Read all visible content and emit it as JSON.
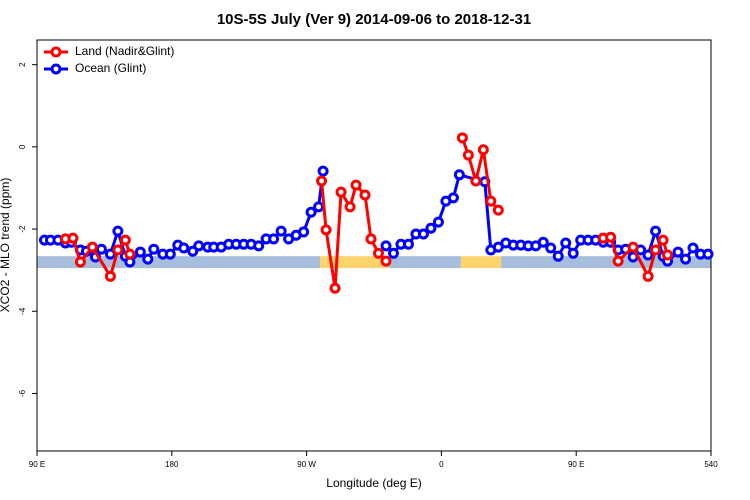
{
  "chart_data": {
    "type": "line",
    "title": "10S-5S July (Ver 9)   2014-09-06 to 2018-12-31",
    "xlabel": "Longitude (deg E)",
    "ylabel": "XCO2 - MLO trend (ppm)",
    "xlim": [
      90,
      540
    ],
    "ylim": [
      -7.4,
      2.6
    ],
    "xticks": [
      {
        "value": 90,
        "label": "90 E"
      },
      180,
      {
        "value": 270,
        "label": "90 W"
      },
      {
        "value": 360,
        "label": "0"
      },
      {
        "value": 450,
        "label": "90 E"
      },
      540
    ],
    "yticks": [
      2,
      0,
      -2,
      -4,
      -6
    ],
    "legend": "top-left",
    "surface_band": {
      "ylim": [
        -2.95,
        -2.66
      ],
      "segments": [
        {
          "from": 90,
          "to": 279,
          "color": "#a6bddb"
        },
        {
          "from": 279,
          "to": 325,
          "color": "#fbd46e"
        },
        {
          "from": 325,
          "to": 373,
          "color": "#a6bddb"
        },
        {
          "from": 373,
          "to": 400,
          "color": "#fbd46e"
        },
        {
          "from": 400,
          "to": 540,
          "color": "#a6bddb"
        }
      ]
    },
    "series": [
      {
        "name": "Ocean (Glint)",
        "color": "#0000ff",
        "x": [
          95,
          99,
          104,
          109,
          113,
          119,
          123,
          129,
          133,
          139,
          144,
          149,
          152,
          159,
          164,
          168,
          174,
          179,
          184,
          188,
          194,
          198,
          204,
          208,
          213,
          218,
          223,
          228,
          233,
          238,
          243,
          248,
          253,
          258,
          263,
          268,
          273,
          278,
          281,
          300,
          323,
          328,
          333,
          338,
          343,
          348,
          353,
          358,
          363,
          368,
          372,
          389,
          393,
          398,
          403,
          408,
          413,
          418,
          423,
          428,
          433,
          438,
          443,
          448,
          453,
          458,
          463,
          468,
          473,
          478,
          483,
          488,
          493,
          498,
          503,
          508,
          511,
          518,
          523,
          528,
          533,
          538
        ],
        "values": [
          -2.27,
          -2.27,
          -2.27,
          -2.34,
          -2.32,
          -2.51,
          -2.54,
          -2.68,
          -2.49,
          -2.61,
          -2.05,
          -2.66,
          -2.8,
          -2.56,
          -2.73,
          -2.49,
          -2.61,
          -2.61,
          -2.39,
          -2.46,
          -2.54,
          -2.41,
          -2.44,
          -2.44,
          -2.44,
          -2.37,
          -2.37,
          -2.37,
          -2.37,
          -2.41,
          -2.24,
          -2.24,
          -2.05,
          -2.24,
          -2.15,
          -2.07,
          -1.59,
          -1.46,
          -0.59,
          null,
          -2.41,
          -2.59,
          -2.37,
          -2.37,
          -2.12,
          -2.12,
          -1.98,
          -1.83,
          -1.32,
          -1.24,
          -0.68,
          -0.85,
          -2.51,
          -2.44,
          -2.34,
          -2.39,
          -2.39,
          -2.41,
          -2.41,
          -2.32,
          -2.46,
          -2.66,
          -2.34,
          -2.59,
          -2.27,
          -2.27,
          -2.27,
          -2.32,
          -2.32,
          -2.51,
          -2.49,
          -2.68,
          -2.51,
          -2.63,
          -2.05,
          -2.66,
          -2.78,
          -2.56,
          -2.73,
          -2.46,
          -2.61,
          -2.61
        ]
      },
      {
        "name": "Land (Nadir&Glint)",
        "color": "#ff0000",
        "x": [
          109,
          114,
          119,
          127,
          139,
          144,
          149,
          152,
          200,
          280,
          283,
          289,
          293,
          299,
          303,
          309,
          313,
          318,
          323,
          340,
          374,
          378,
          383,
          388,
          393,
          398,
          430,
          468,
          473,
          478,
          488,
          498,
          503,
          508,
          511
        ],
        "values": [
          -2.24,
          -2.22,
          -2.8,
          -2.44,
          -3.15,
          -2.51,
          -2.27,
          -2.61,
          null,
          -0.83,
          -2.02,
          -3.44,
          -1.1,
          -1.46,
          -0.93,
          -1.17,
          -2.24,
          -2.59,
          -2.78,
          null,
          0.22,
          -0.2,
          -0.83,
          -0.07,
          -1.32,
          -1.54,
          null,
          -2.22,
          -2.2,
          -2.78,
          -2.44,
          -3.15,
          -2.51,
          -2.27,
          -2.63
        ]
      }
    ]
  }
}
